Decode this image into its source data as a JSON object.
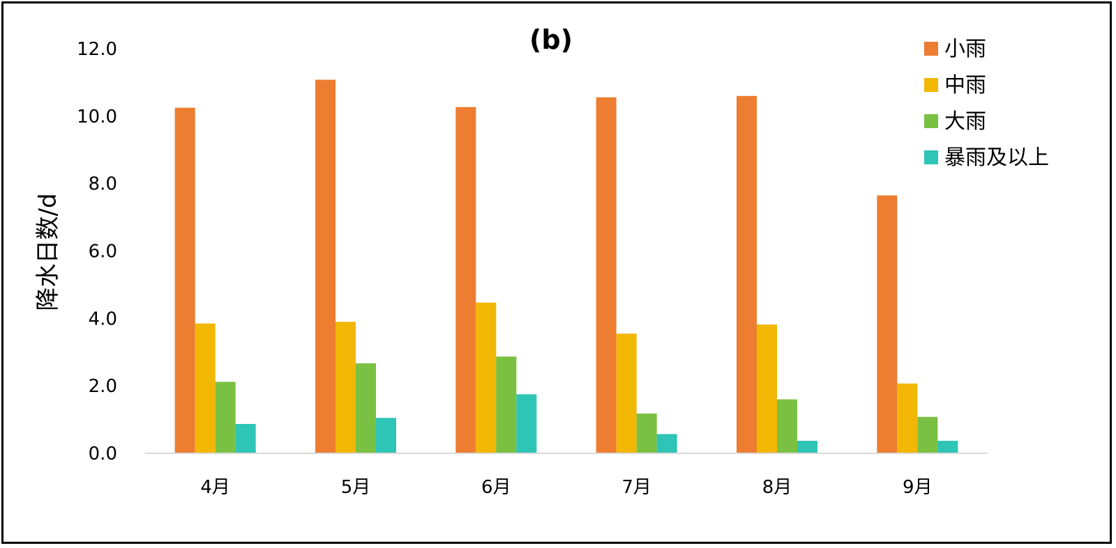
{
  "chart_data": {
    "type": "bar",
    "title": "(b)",
    "xlabel": "",
    "ylabel": "降水日数/d",
    "ylim": [
      0,
      12
    ],
    "yticks": [
      "0.0",
      "2.0",
      "4.0",
      "6.0",
      "8.0",
      "10.0",
      "12.0"
    ],
    "categories": [
      "4月",
      "5月",
      "6月",
      "7月",
      "8月",
      "9月"
    ],
    "series": [
      {
        "name": "小雨",
        "color": "#ED7D31",
        "values": [
          10.25,
          11.08,
          10.27,
          10.56,
          10.6,
          7.65
        ]
      },
      {
        "name": "中雨",
        "color": "#F2B705",
        "values": [
          3.85,
          3.9,
          4.47,
          3.55,
          3.82,
          2.07
        ]
      },
      {
        "name": "大雨",
        "color": "#7AC143",
        "values": [
          2.12,
          2.67,
          2.87,
          1.18,
          1.6,
          1.08
        ]
      },
      {
        "name": "暴雨及以上",
        "color": "#2EC4B6",
        "values": [
          0.87,
          1.05,
          1.75,
          0.57,
          0.37,
          0.37
        ]
      }
    ],
    "grid": false,
    "legend": "top-right"
  }
}
